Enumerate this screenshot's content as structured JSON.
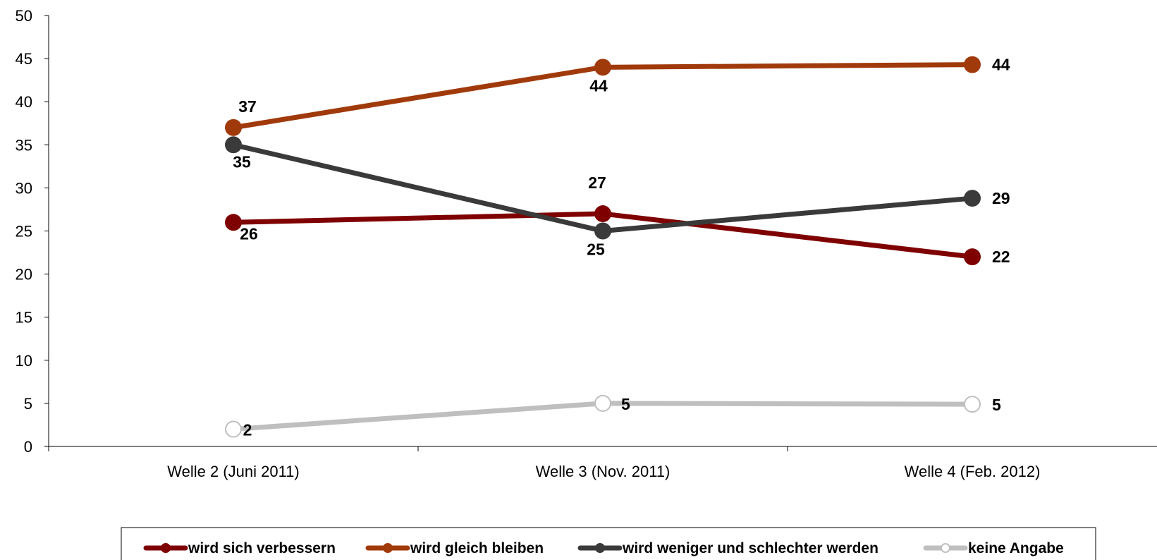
{
  "chart_data": {
    "type": "line",
    "categories": [
      "Welle 2 (Juni 2011)",
      "Welle 3 (Nov. 2011)",
      "Welle 4 (Feb. 2012)"
    ],
    "ylim": [
      0,
      50
    ],
    "yticks": [
      0,
      5,
      10,
      15,
      20,
      25,
      30,
      35,
      40,
      45,
      50
    ],
    "grid": false,
    "legend": "bottom",
    "title": "",
    "xlabel": "",
    "ylabel": "",
    "series": [
      {
        "name": "wird sich verbessern",
        "values": [
          26,
          27,
          22
        ],
        "labels": [
          "26",
          "27",
          "22"
        ],
        "color": "#7f0000",
        "marker": "filled"
      },
      {
        "name": "wird gleich bleiben",
        "values": [
          37,
          44,
          44.3
        ],
        "labels": [
          "37",
          "44",
          "44"
        ],
        "color": "#a13a0b",
        "marker": "filled"
      },
      {
        "name": "wird weniger und schlechter werden",
        "values": [
          35,
          25,
          28.8
        ],
        "labels": [
          "35",
          "25",
          "29"
        ],
        "color": "#3a3a3a",
        "marker": "filled"
      },
      {
        "name": "keine Angabe",
        "values": [
          2,
          5,
          4.9
        ],
        "labels": [
          "2",
          "5",
          "5"
        ],
        "color": "#bfbfbf",
        "marker": "hollow"
      }
    ]
  }
}
